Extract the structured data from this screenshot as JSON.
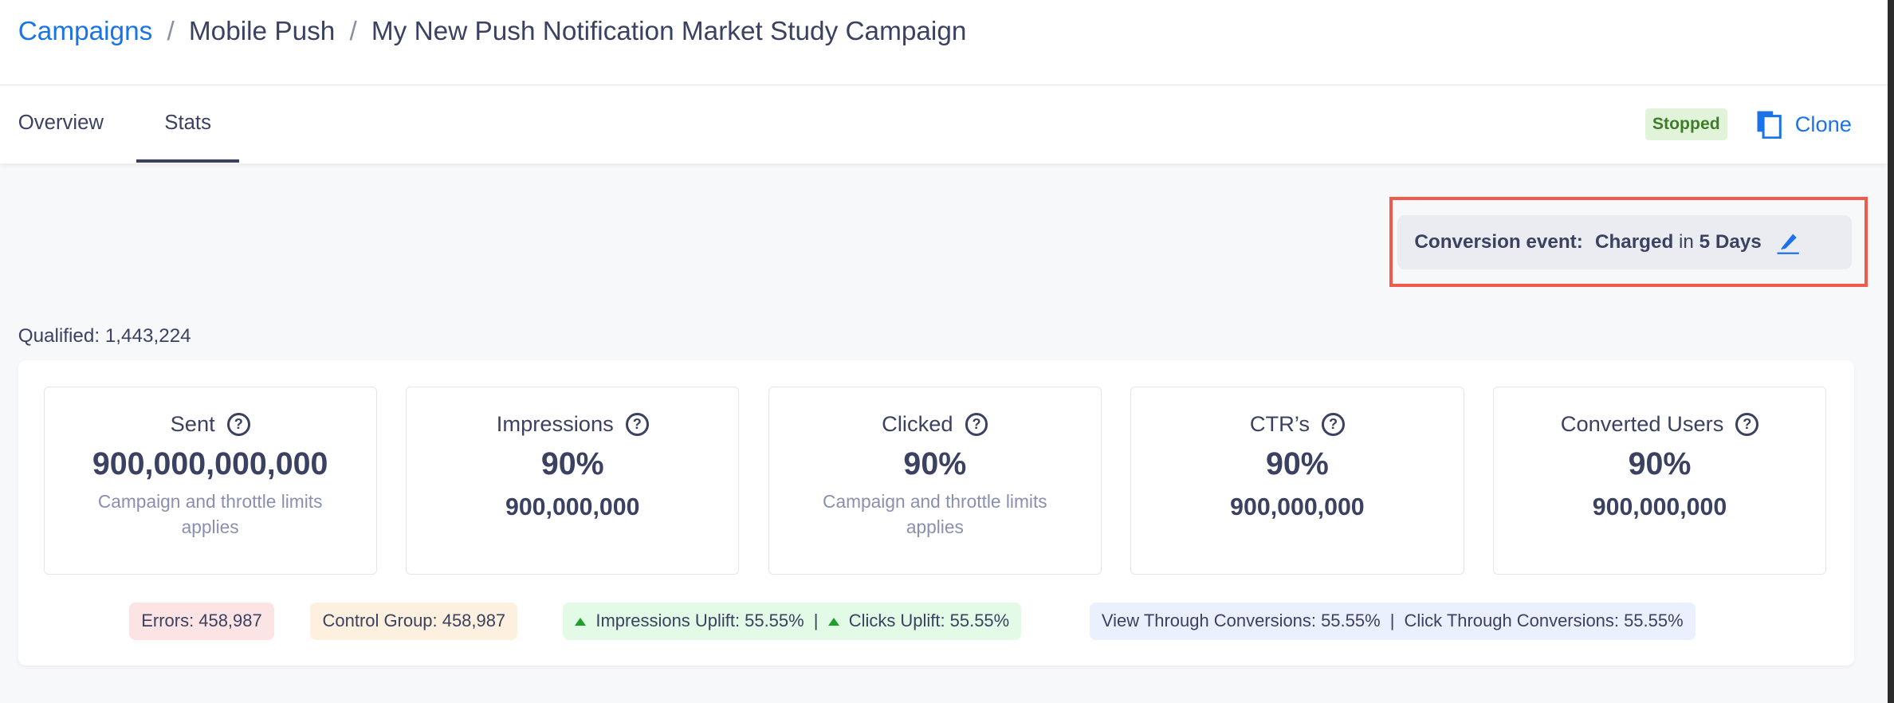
{
  "breadcrumb": {
    "items": [
      "Campaigns",
      "Mobile Push",
      "My New Push Notification Market Study Campaign"
    ],
    "separator": "/"
  },
  "tabs": [
    {
      "label": "Overview",
      "active": false
    },
    {
      "label": "Stats",
      "active": true
    }
  ],
  "status": {
    "label": "Stopped",
    "color": "#3e7d2a"
  },
  "clone": {
    "label": "Clone",
    "icon": "copy-icon"
  },
  "conversion": {
    "label": "Conversion event:",
    "event": "Charged",
    "in": "in",
    "window": "5 Days",
    "icon": "pencil-icon"
  },
  "qualified": "Qualified: 1,443,224",
  "cards": [
    {
      "title": "Sent",
      "value": "900,000,000,000",
      "note": "Campaign and throttle limits applies"
    },
    {
      "title": "Impressions",
      "value": "90%",
      "count": "900,000,000"
    },
    {
      "title": "Clicked",
      "value": "90%",
      "note": "Campaign and throttle limits applies"
    },
    {
      "title": "CTR’s",
      "value": "90%",
      "count": "900,000,000"
    },
    {
      "title": "Converted Users",
      "value": "90%",
      "count": "900,000,000"
    }
  ],
  "badges": {
    "errors": "Errors: 458,987",
    "control": "Control Group: 458,987",
    "impressions_uplift": "Impressions Uplift: 55.55%",
    "clicks_uplift": "Clicks Uplift: 55.55%",
    "view_through": "View Through Conversions: 55.55%",
    "click_through": "Click Through Conversions: 55.55%",
    "divider": "|"
  },
  "colors": {
    "accent": "#1a73e8",
    "highlight": "#f15a4a",
    "errors_bg": "#fde4e4",
    "control_bg": "#fdf0de",
    "uplift_bg": "#e3fbe6",
    "conv_bg": "#eaf0fd"
  }
}
